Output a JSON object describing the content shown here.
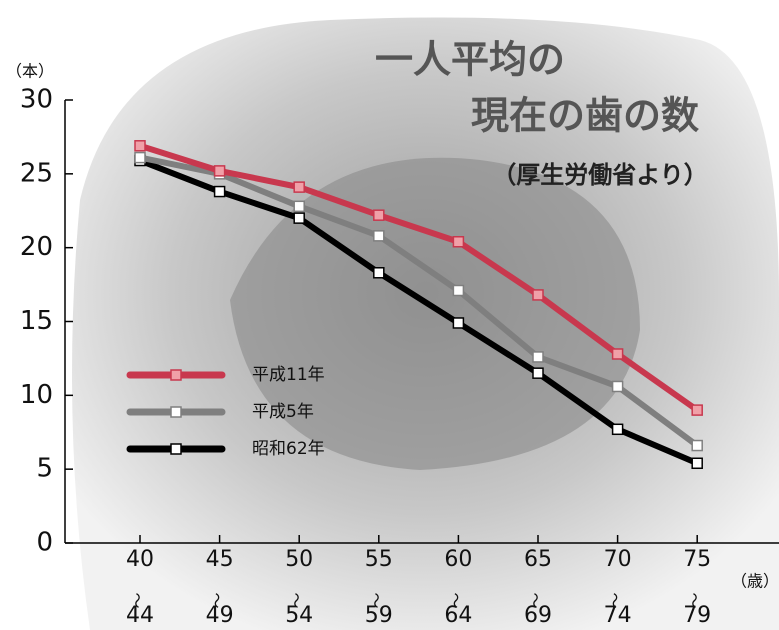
{
  "chart_data": {
    "type": "line",
    "title": [
      "一人平均の",
      "現在の歯の数"
    ],
    "subtitle": "（厚生労働省より）",
    "y_label": "（本）",
    "x_label": "（歳）",
    "categories": [
      "40〜44",
      "45〜49",
      "50〜54",
      "55〜59",
      "60〜64",
      "65〜69",
      "70〜74",
      "75〜79"
    ],
    "series": [
      {
        "name": "平成11年",
        "color": "#c8384e",
        "values": [
          26.9,
          25.2,
          24.1,
          22.2,
          20.4,
          16.8,
          12.8,
          9.0
        ]
      },
      {
        "name": "平成5年",
        "color": "#7f7f7f",
        "values": [
          26.1,
          25.0,
          22.8,
          20.8,
          17.1,
          12.6,
          10.6,
          6.6
        ]
      },
      {
        "name": "昭和62年",
        "color": "#000000",
        "values": [
          25.9,
          23.8,
          22.0,
          18.3,
          14.9,
          11.5,
          7.7,
          5.4
        ]
      }
    ],
    "ylim": [
      0,
      30
    ],
    "yticks": [
      0,
      5,
      10,
      15,
      20,
      25,
      30
    ]
  }
}
